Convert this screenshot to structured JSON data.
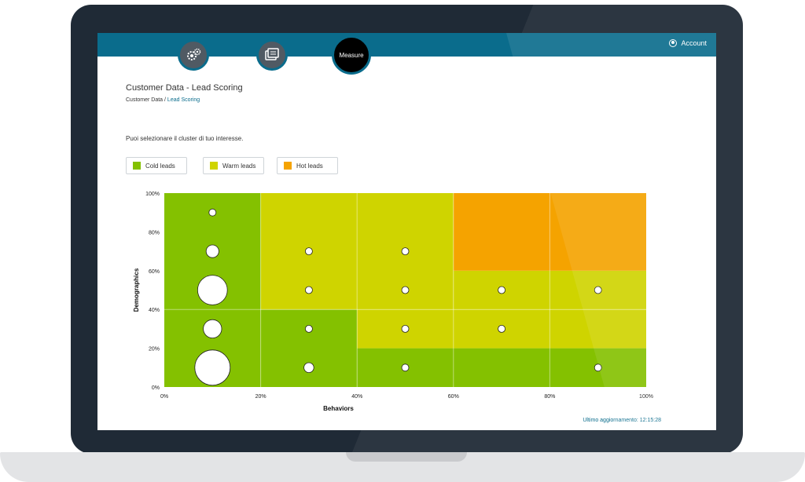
{
  "header": {
    "account_label": "Account"
  },
  "nav": {
    "measure_label": "Measure"
  },
  "page": {
    "title": "Customer Data - Lead Scoring",
    "breadcrumb": {
      "root": "Customer Data",
      "separator": " / ",
      "current": "Lead Scoring"
    },
    "subtitle": "Puoi selezionare il cluster di tuo interesse."
  },
  "legend": [
    {
      "label": "Cold leads",
      "color": "#84c100"
    },
    {
      "label": "Warm leads",
      "color": "#cfd400"
    },
    {
      "label": "Hot leads",
      "color": "#f5a300"
    }
  ],
  "footer": {
    "updated": "Ultimo aggiornamento: 12:15:28"
  },
  "chart_data": {
    "type": "scatter",
    "xlabel": "Behaviors",
    "ylabel": "Demographics",
    "xlim": [
      0,
      100
    ],
    "ylim": [
      0,
      100
    ],
    "x_ticks": [
      "0%",
      "20%",
      "40%",
      "60%",
      "80%",
      "100%"
    ],
    "y_ticks": [
      "0%",
      "20%",
      "40%",
      "60%",
      "80%",
      "100%"
    ],
    "regions": [
      {
        "cluster": "cold",
        "color": "#84c100",
        "x": [
          0,
          20
        ],
        "y": [
          0,
          100
        ]
      },
      {
        "cluster": "cold",
        "color": "#84c100",
        "x": [
          20,
          40
        ],
        "y": [
          0,
          40
        ]
      },
      {
        "cluster": "cold",
        "color": "#84c100",
        "x": [
          40,
          100
        ],
        "y": [
          0,
          20
        ]
      },
      {
        "cluster": "warm",
        "color": "#cfd400",
        "x": [
          20,
          60
        ],
        "y": [
          40,
          100
        ]
      },
      {
        "cluster": "warm",
        "color": "#cfd400",
        "x": [
          40,
          100
        ],
        "y": [
          20,
          40
        ]
      },
      {
        "cluster": "warm",
        "color": "#cfd400",
        "x": [
          60,
          100
        ],
        "y": [
          40,
          60
        ]
      },
      {
        "cluster": "hot",
        "color": "#f5a300",
        "x": [
          60,
          100
        ],
        "y": [
          60,
          100
        ]
      }
    ],
    "points": [
      {
        "x": 10,
        "y": 90,
        "size": 1
      },
      {
        "x": 10,
        "y": 70,
        "size": 2
      },
      {
        "x": 10,
        "y": 50,
        "size": 5
      },
      {
        "x": 10,
        "y": 30,
        "size": 3
      },
      {
        "x": 10,
        "y": 10,
        "size": 6
      },
      {
        "x": 30,
        "y": 70,
        "size": 1
      },
      {
        "x": 30,
        "y": 50,
        "size": 1
      },
      {
        "x": 30,
        "y": 30,
        "size": 1
      },
      {
        "x": 30,
        "y": 10,
        "size": 1.5
      },
      {
        "x": 50,
        "y": 70,
        "size": 1
      },
      {
        "x": 50,
        "y": 50,
        "size": 1
      },
      {
        "x": 50,
        "y": 30,
        "size": 1
      },
      {
        "x": 50,
        "y": 10,
        "size": 1
      },
      {
        "x": 70,
        "y": 50,
        "size": 1
      },
      {
        "x": 70,
        "y": 30,
        "size": 1
      },
      {
        "x": 90,
        "y": 50,
        "size": 1
      },
      {
        "x": 90,
        "y": 10,
        "size": 1
      }
    ]
  }
}
